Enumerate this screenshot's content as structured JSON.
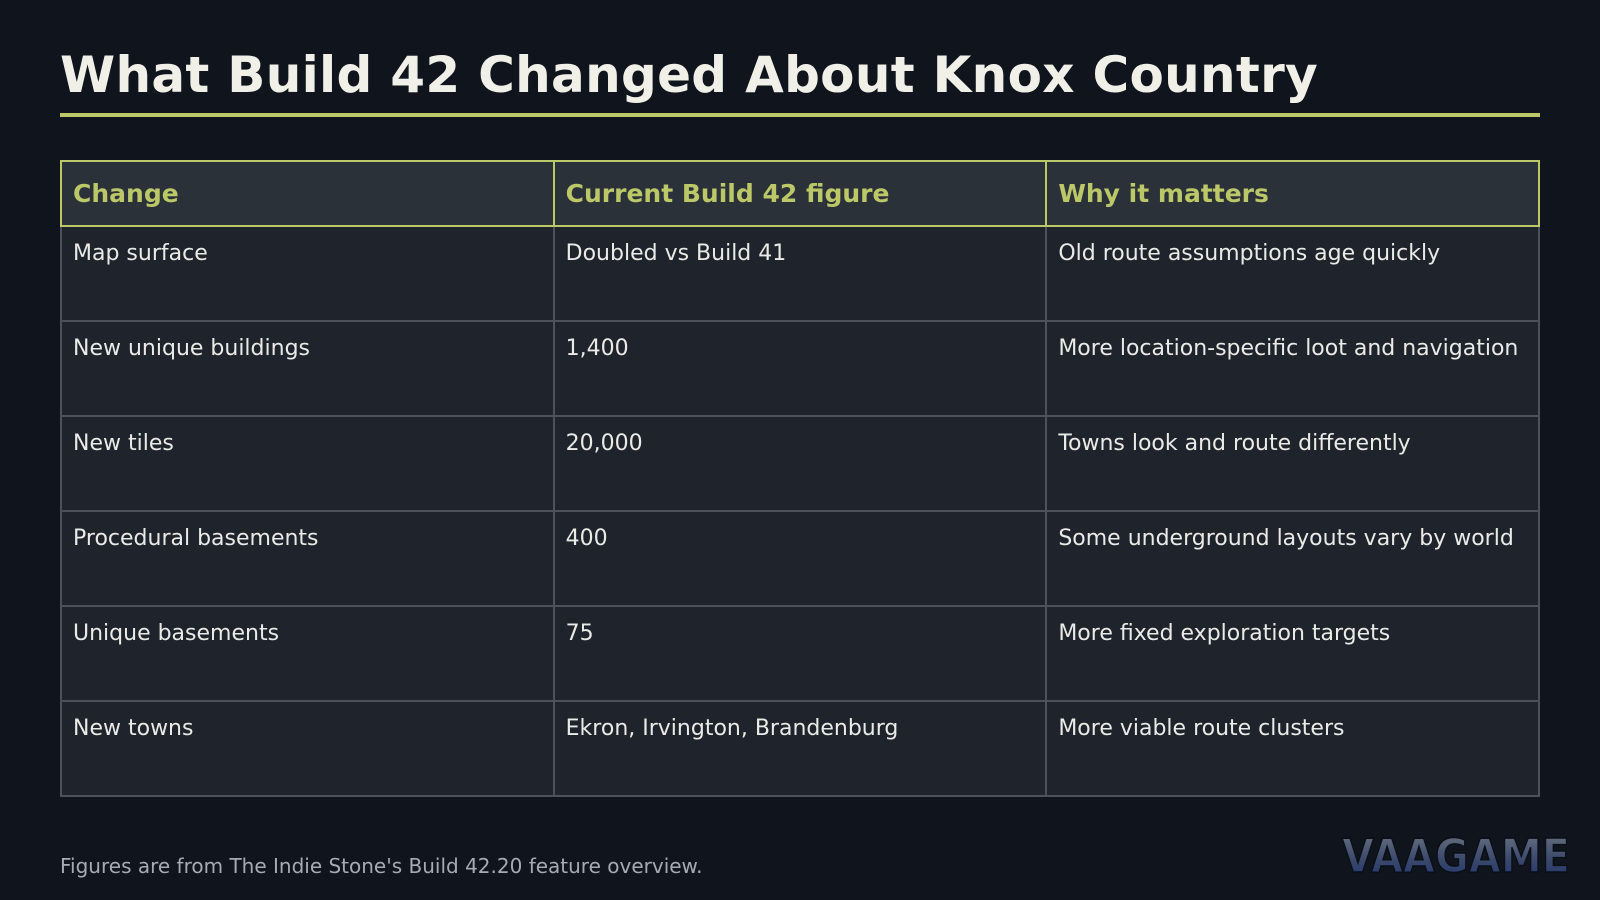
{
  "title": "What Build 42 Changed About Knox Country",
  "table": {
    "headers": [
      "Change",
      "Current Build 42 figure",
      "Why it matters"
    ],
    "rows": [
      [
        "Map surface",
        "Doubled vs Build 41",
        "Old route assumptions age quickly"
      ],
      [
        "New unique buildings",
        "1,400",
        "More location-specific loot and navigation"
      ],
      [
        "New tiles",
        "20,000",
        "Towns look and route differently"
      ],
      [
        "Procedural basements",
        "400",
        "Some underground layouts vary by world"
      ],
      [
        "Unique basements",
        "75",
        "More fixed exploration targets"
      ],
      [
        "New towns",
        "Ekron, Irvington, Brandenburg",
        "More viable route clusters"
      ]
    ]
  },
  "source_note": "Figures are from The Indie Stone's Build 42.20 feature overview.",
  "logo_text": "VAAGAME",
  "colors": {
    "background": "#10151d",
    "accent": "#bcc768",
    "header_bg": "#2b3139",
    "cell_bg": "#1f232b",
    "cell_border": "#4b525c",
    "text": "#e9ebe6",
    "muted_text": "#a7abb1"
  }
}
